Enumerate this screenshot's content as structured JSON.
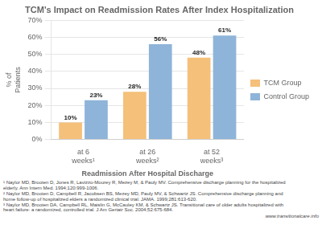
{
  "chart_data": {
    "type": "bar",
    "title": "TCM's Impact on Readmission Rates After Index Hospitalization",
    "categories": [
      "at 6\nweeks¹",
      "at 26\nweeks²",
      "at 52\nweeks³"
    ],
    "series": [
      {
        "name": "TCM Group",
        "color": "#F5C07A",
        "values": [
          10,
          28,
          48
        ],
        "value_labels": [
          "10%",
          "28%",
          "48%"
        ]
      },
      {
        "name": "Control Group",
        "color": "#8FB4D9",
        "values": [
          23,
          56,
          61
        ],
        "value_labels": [
          "23%",
          "56%",
          "61%"
        ]
      }
    ],
    "ylabel": "% of\nPatients",
    "xlabel": "Readmission After Hospital Discharge",
    "ylim": [
      0,
      70
    ],
    "yticks": [
      {
        "value": 0,
        "label": "0%"
      },
      {
        "value": 10,
        "label": "10%"
      },
      {
        "value": 20,
        "label": "20%"
      },
      {
        "value": 30,
        "label": "30%"
      },
      {
        "value": 40,
        "label": "40%"
      },
      {
        "value": 50,
        "label": "50%"
      },
      {
        "value": 60,
        "label": "60%"
      },
      {
        "value": 70,
        "label": "70%"
      }
    ],
    "grid": true,
    "legend": "right",
    "data_labels": true,
    "annotations": [
      "¹ Naylor MD, Brooten D, Jones R, Lavizzo-Mourey R, Mezey M, & Pauly MV. Comprehensive discharge planning for the hospitalized",
      "  elderly. Ann Intern Med. 1994;120:999-1006.",
      "² Naylor MD, Brooten D, Campbell R, Jacobsen BS, Mezey MD, Pauly MV, & Schwartz JS. Comprehensive discharge planning and",
      "  home follow-up of hospitalized elders a randomized clinical trial. JAMA. 1999;281:613-620.",
      "³ Naylor MD, Brooten DA, Campbell RL, Maislin G, McCauley KM, & Schwartz JS. Transitional care of older adults hospitalized with",
      "  heart failure: a randomized, controlled trial. J Am Geriatr Soc. 2004;52:675-684.",
      "www.transitionalcare.info"
    ]
  }
}
